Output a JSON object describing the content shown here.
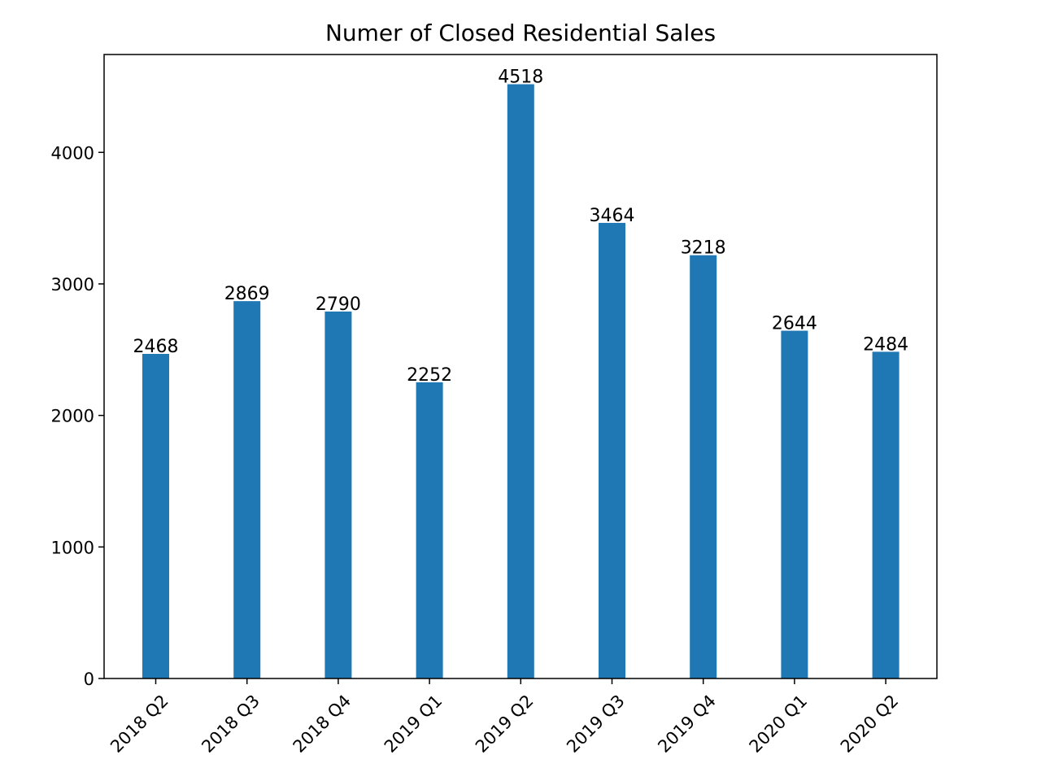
{
  "chart_data": {
    "type": "bar",
    "title": "Numer of Closed Residential Sales",
    "xlabel": "",
    "ylabel": "",
    "categories": [
      "2018 Q2",
      "2018 Q3",
      "2018 Q4",
      "2019 Q1",
      "2019 Q2",
      "2019 Q3",
      "2019 Q4",
      "2020 Q1",
      "2020 Q2"
    ],
    "values": [
      2468,
      2869,
      2790,
      2252,
      4518,
      3464,
      3218,
      2644,
      2484
    ],
    "data_labels": [
      "2468",
      "2869",
      "2790",
      "2252",
      "4518",
      "3464",
      "3218",
      "2644",
      "2484"
    ],
    "ylim": [
      0,
      4744
    ],
    "yticks": [
      0,
      1000,
      2000,
      3000,
      4000
    ],
    "ytick_labels": [
      "0",
      "1000",
      "2000",
      "3000",
      "4000"
    ],
    "grid": false,
    "legend": "none",
    "bar_color": "#1f77b4"
  }
}
